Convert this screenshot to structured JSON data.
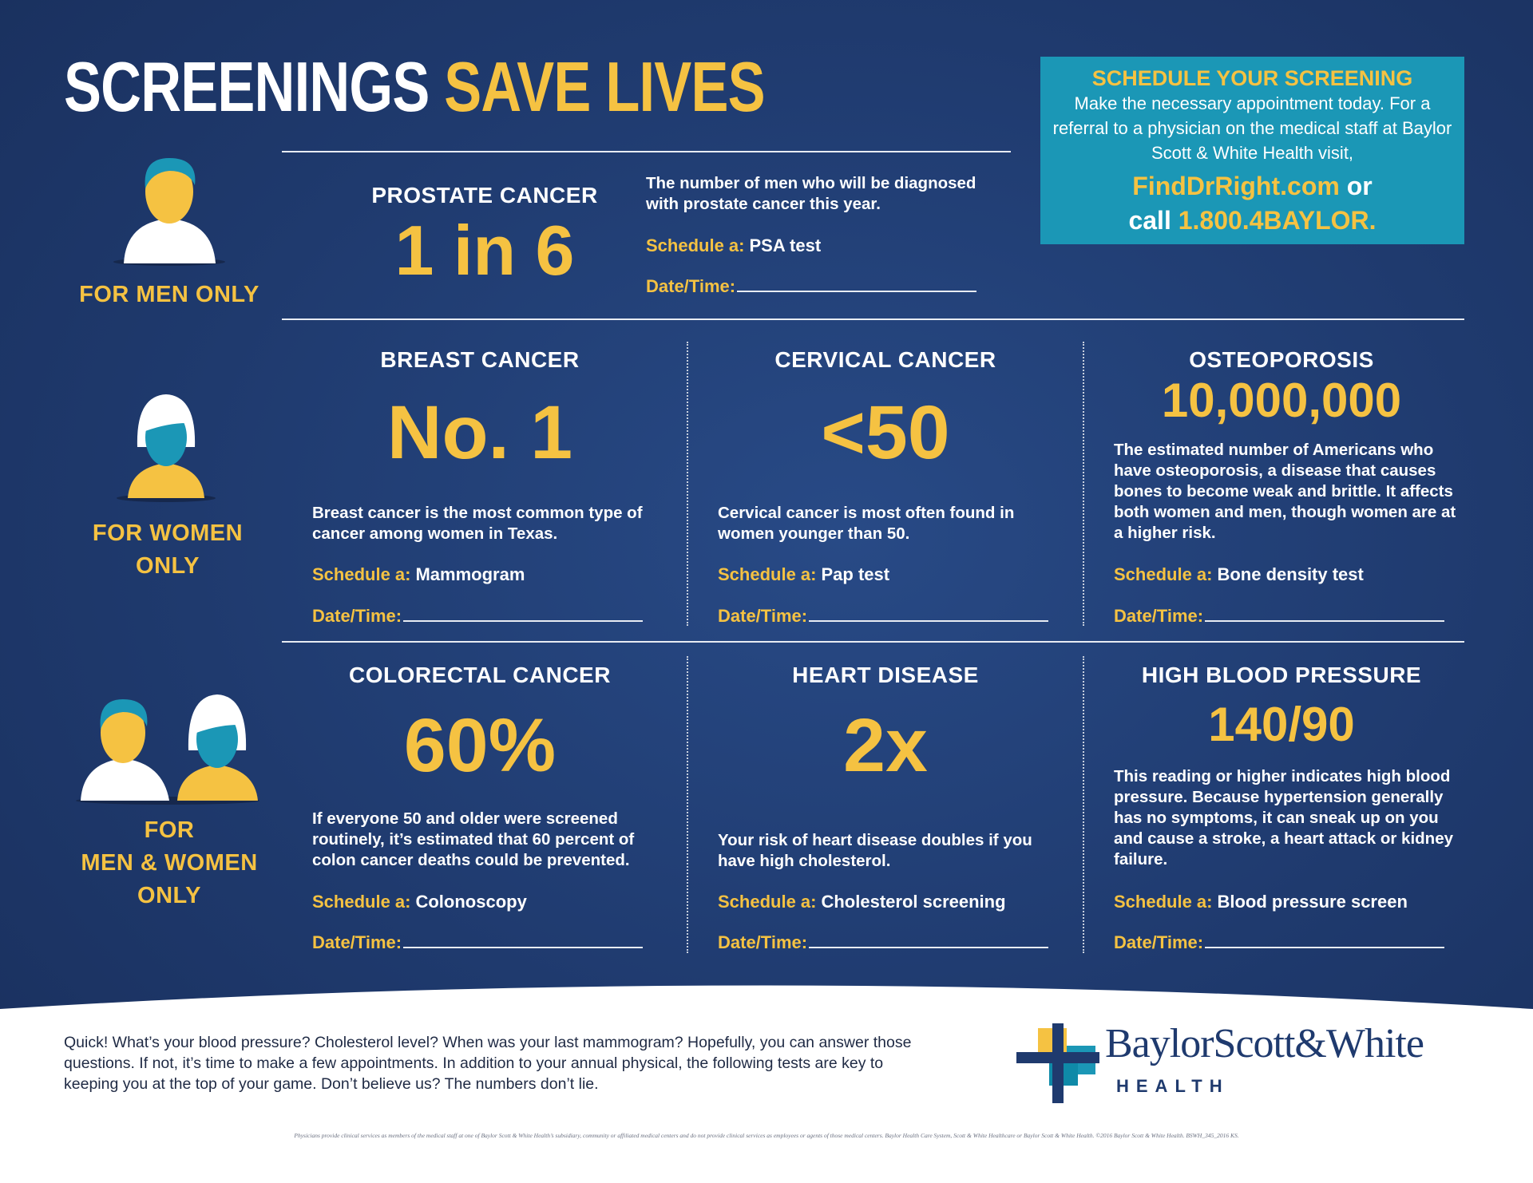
{
  "header": {
    "title_white": "SCREENINGS",
    "title_gold": "SAVE LIVES"
  },
  "cta": {
    "heading": "SCHEDULE YOUR SCREENING",
    "body": "Make the necessary appointment today. For a referral to a physician on the medical staff at Baylor Scott & White Health visit,",
    "link": "FindDrRight.com",
    "or": "or",
    "call": "call",
    "phone": "1.800.4BAYLOR."
  },
  "groups": [
    {
      "lines": [
        "FOR MEN ONLY"
      ]
    },
    {
      "lines": [
        "FOR WOMEN",
        "ONLY"
      ]
    },
    {
      "lines": [
        "FOR",
        "MEN & WOMEN",
        "ONLY"
      ]
    }
  ],
  "cards": [
    {
      "title": "PROSTATE CANCER",
      "stat": "1 in 6",
      "text": "The number of men who will be diagnosed with prostate cancer this year.",
      "schedule_label": "Schedule a:",
      "test": "PSA test",
      "date_label": "Date/Time:"
    },
    {
      "title": "BREAST CANCER",
      "stat": "No. 1",
      "text": "Breast cancer is the most common type of cancer among women in Texas.",
      "schedule_label": "Schedule a:",
      "test": "Mammogram",
      "date_label": "Date/Time:"
    },
    {
      "title": "CERVICAL CANCER",
      "stat": "<50",
      "text": "Cervical cancer is most often found in women younger than 50.",
      "schedule_label": "Schedule a:",
      "test": "Pap test",
      "date_label": "Date/Time:"
    },
    {
      "title": "OSTEOPOROSIS",
      "stat": "10,000,000",
      "text": "The estimated number of Americans who have osteoporosis, a disease that causes bones to become weak and brittle. It affects both women and men, though women are at a higher risk.",
      "schedule_label": "Schedule a:",
      "test": "Bone density test",
      "date_label": "Date/Time:"
    },
    {
      "title": "COLORECTAL CANCER",
      "stat": "60%",
      "text": "If everyone 50 and older were screened routinely, it’s estimated that 60 percent of colon cancer deaths could be prevented.",
      "schedule_label": "Schedule a:",
      "test": "Colonoscopy",
      "date_label": "Date/Time:"
    },
    {
      "title": "HEART DISEASE",
      "stat": "2x",
      "text": "Your risk of heart disease doubles if you have high cholesterol.",
      "schedule_label": "Schedule a:",
      "test": "Cholesterol screening",
      "date_label": "Date/Time:"
    },
    {
      "title": "HIGH BLOOD PRESSURE",
      "stat": "140/90",
      "text": "This reading or higher indicates high blood pressure. Because hypertension generally has no symptoms, it can sneak up on you and cause a stroke, a heart attack or kidney failure.",
      "schedule_label": "Schedule a:",
      "test": "Blood pressure screen",
      "date_label": "Date/Time:"
    }
  ],
  "footer": {
    "intro": "Quick! What’s your blood pressure? Cholesterol level? When was your last mammogram? Hopefully, you can answer those questions. If not, it’s time to make a few appointments. In addition to your annual physical, the following tests are key to keeping you at the top of your game. Don’t believe us? The numbers don’t lie.",
    "logo_name": "BaylorScott&White",
    "logo_sub": "HEALTH",
    "disclaimer": "Physicians provide clinical services as members of the medical staff at one of Baylor Scott & White Health’s subsidiary, community or affiliated medical centers and do not provide clinical services as employees or agents of those medical centers. Baylor Health Care System, Scott & White Healthcare or Baylor Scott & White Health. ©2016 Baylor Scott & White Health. BSWH_345_2016 KS."
  }
}
